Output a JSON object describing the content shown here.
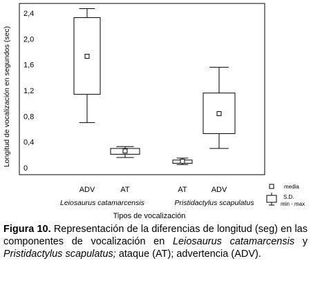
{
  "chart_data": {
    "type": "boxplot",
    "ylabel": "Longitud de vocalización en segundos (sec)",
    "xlabel": "Tipos de vocalización",
    "ylim": [
      -0.1,
      2.5
    ],
    "y_ticks": [
      "0",
      "0,4",
      "0,8",
      "1,2",
      "1,6",
      "2,0",
      "2,4"
    ],
    "y_tick_values": [
      0,
      0.4,
      0.8,
      1.2,
      1.6,
      2.0,
      2.4
    ],
    "categories": [
      "ADV",
      "AT",
      "AT",
      "ADV"
    ],
    "groups": [
      "Leiosaurus catamarcensis",
      "Pristidactylus scapulatus"
    ],
    "boxes": [
      {
        "category": "ADV",
        "group": "Leiosaurus catamarcensis",
        "min": 0.7,
        "lower": 1.14,
        "mean": 1.73,
        "upper": 2.33,
        "max": 2.47
      },
      {
        "category": "AT",
        "group": "Leiosaurus catamarcensis",
        "min": 0.16,
        "lower": 0.21,
        "mean": 0.26,
        "upper": 0.3,
        "max": 0.33
      },
      {
        "category": "AT",
        "group": "Pristidactylus scapulatus",
        "min": 0.05,
        "lower": 0.07,
        "mean": 0.1,
        "upper": 0.12,
        "max": 0.15
      },
      {
        "category": "ADV",
        "group": "Pristidactylus scapulatus",
        "min": 0.3,
        "lower": 0.53,
        "mean": 0.84,
        "upper": 1.16,
        "max": 1.56
      }
    ],
    "legend": {
      "mean": "media",
      "sd": "S.D.",
      "range": "min - max"
    }
  },
  "caption": {
    "figure_label": "Figura 10.",
    "t1": " Representación de la diferencias de longitud (seg) en las componentes de vocalización en ",
    "sp1": "Leiosaurus catamarcensis",
    "t2": " y ",
    "sp2": "Pristidactylus scapulatus;",
    "t3": " ataque (AT); advertencia (ADV)."
  }
}
